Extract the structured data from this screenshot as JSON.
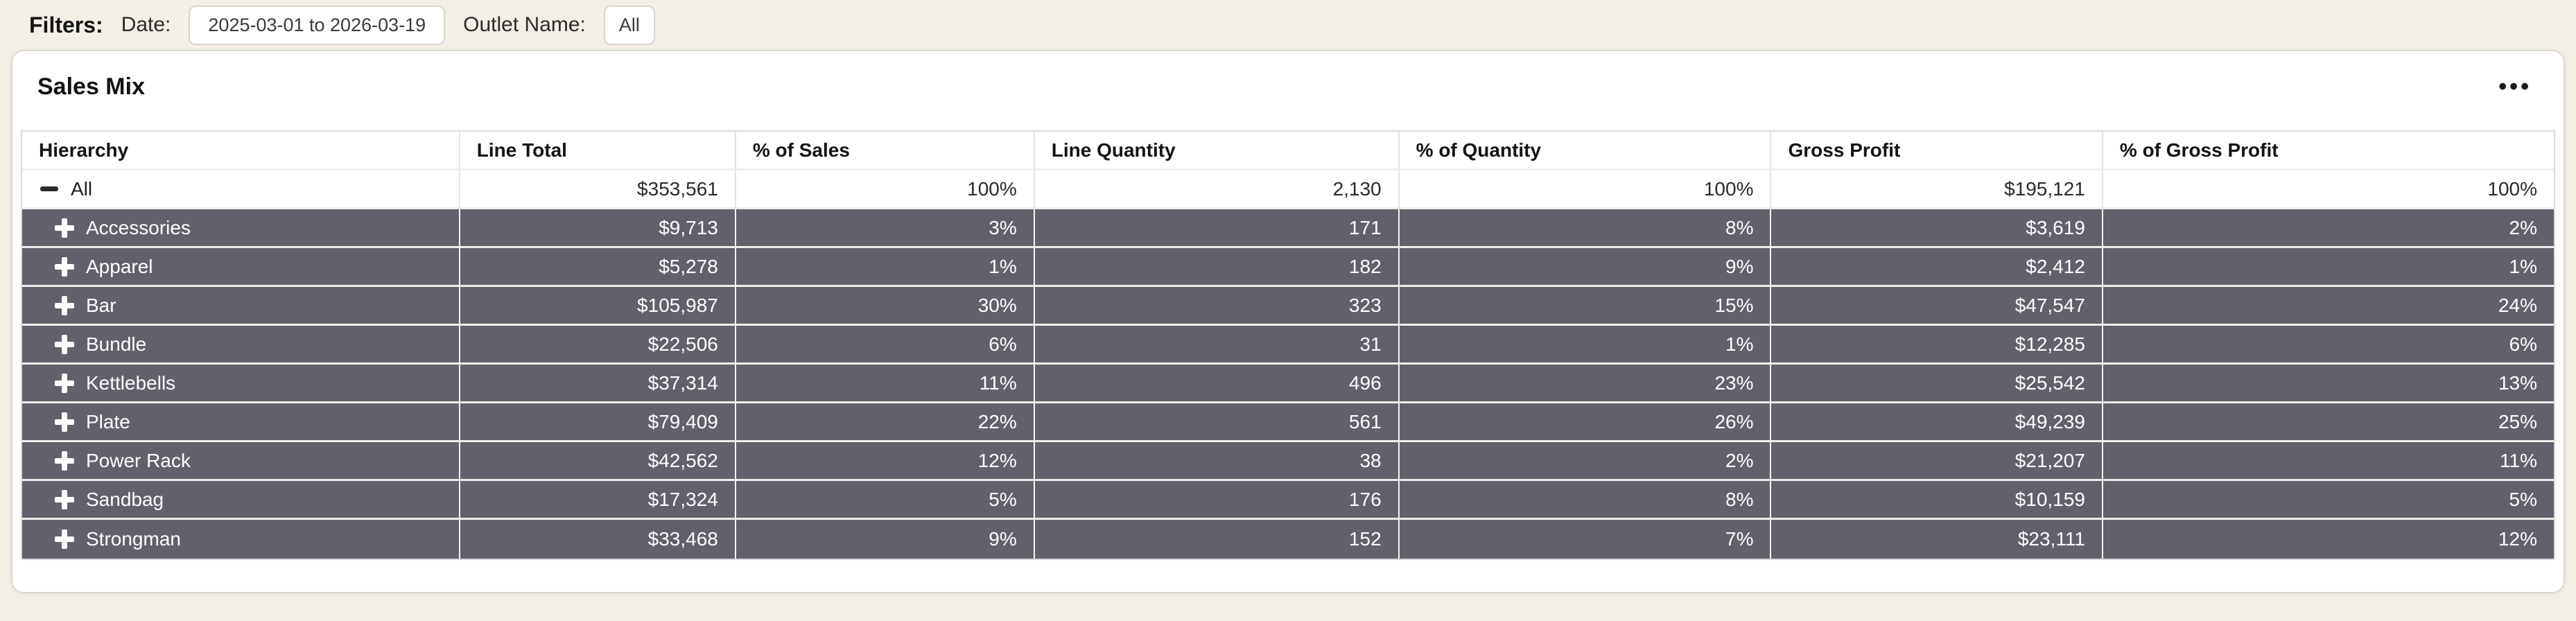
{
  "filters": {
    "label": "Filters:",
    "date": {
      "label": "Date:",
      "value": "2025-03-01 to 2026-03-19"
    },
    "outlet": {
      "label": "Outlet Name:",
      "value": "All"
    }
  },
  "card": {
    "title": "Sales Mix",
    "menu_icon": "•••"
  },
  "colors": {
    "page_background": "#F3EFE6",
    "row_highlight": "#61616C",
    "row_highlight_text": "#FFFFFF"
  },
  "table": {
    "columns": [
      "Hierarchy",
      "Line Total",
      "% of Sales",
      "Line Quantity",
      "% of Quantity",
      "Gross Profit",
      "% of Gross Profit"
    ],
    "rows": [
      {
        "name": "All",
        "level": 0,
        "toggle": "collapse",
        "line_total": "$353,561",
        "pct_of_sales": "100%",
        "line_quantity": "2,130",
        "pct_of_quantity": "100%",
        "gross_profit": "$195,121",
        "pct_of_gross_profit": "100%"
      },
      {
        "name": "Accessories",
        "level": 1,
        "toggle": "expand",
        "line_total": "$9,713",
        "pct_of_sales": "3%",
        "line_quantity": "171",
        "pct_of_quantity": "8%",
        "gross_profit": "$3,619",
        "pct_of_gross_profit": "2%"
      },
      {
        "name": "Apparel",
        "level": 1,
        "toggle": "expand",
        "line_total": "$5,278",
        "pct_of_sales": "1%",
        "line_quantity": "182",
        "pct_of_quantity": "9%",
        "gross_profit": "$2,412",
        "pct_of_gross_profit": "1%"
      },
      {
        "name": "Bar",
        "level": 1,
        "toggle": "expand",
        "line_total": "$105,987",
        "pct_of_sales": "30%",
        "line_quantity": "323",
        "pct_of_quantity": "15%",
        "gross_profit": "$47,547",
        "pct_of_gross_profit": "24%"
      },
      {
        "name": "Bundle",
        "level": 1,
        "toggle": "expand",
        "line_total": "$22,506",
        "pct_of_sales": "6%",
        "line_quantity": "31",
        "pct_of_quantity": "1%",
        "gross_profit": "$12,285",
        "pct_of_gross_profit": "6%"
      },
      {
        "name": "Kettlebells",
        "level": 1,
        "toggle": "expand",
        "line_total": "$37,314",
        "pct_of_sales": "11%",
        "line_quantity": "496",
        "pct_of_quantity": "23%",
        "gross_profit": "$25,542",
        "pct_of_gross_profit": "13%"
      },
      {
        "name": "Plate",
        "level": 1,
        "toggle": "expand",
        "line_total": "$79,409",
        "pct_of_sales": "22%",
        "line_quantity": "561",
        "pct_of_quantity": "26%",
        "gross_profit": "$49,239",
        "pct_of_gross_profit": "25%"
      },
      {
        "name": "Power Rack",
        "level": 1,
        "toggle": "expand",
        "line_total": "$42,562",
        "pct_of_sales": "12%",
        "line_quantity": "38",
        "pct_of_quantity": "2%",
        "gross_profit": "$21,207",
        "pct_of_gross_profit": "11%"
      },
      {
        "name": "Sandbag",
        "level": 1,
        "toggle": "expand",
        "line_total": "$17,324",
        "pct_of_sales": "5%",
        "line_quantity": "176",
        "pct_of_quantity": "8%",
        "gross_profit": "$10,159",
        "pct_of_gross_profit": "5%"
      },
      {
        "name": "Strongman",
        "level": 1,
        "toggle": "expand",
        "line_total": "$33,468",
        "pct_of_sales": "9%",
        "line_quantity": "152",
        "pct_of_quantity": "7%",
        "gross_profit": "$23,111",
        "pct_of_gross_profit": "12%"
      }
    ]
  }
}
